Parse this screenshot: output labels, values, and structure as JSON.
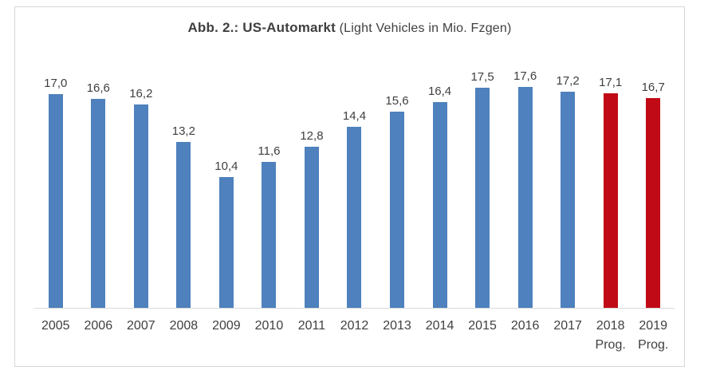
{
  "chart": {
    "title_bold": "Abb. 2.: US-Automarkt",
    "title_regular": " (Light Vehicles in Mio. Fzgen)"
  },
  "chart_data": {
    "type": "bar",
    "title": "Abb. 2.: US-Automarkt (Light Vehicles in Mio. Fzgen)",
    "xlabel": "",
    "ylabel": "Light Vehicles in Mio. Fzgen",
    "categories": [
      "2005",
      "2006",
      "2007",
      "2008",
      "2009",
      "2010",
      "2011",
      "2012",
      "2013",
      "2014",
      "2015",
      "2016",
      "2017",
      "2018",
      "2019"
    ],
    "category_sublabels": [
      "",
      "",
      "",
      "",
      "",
      "",
      "",
      "",
      "",
      "",
      "",
      "",
      "",
      "Prog.",
      "Prog."
    ],
    "values": [
      17.0,
      16.6,
      16.2,
      13.2,
      10.4,
      11.6,
      12.8,
      14.4,
      15.6,
      16.4,
      17.5,
      17.6,
      17.2,
      17.1,
      16.7
    ],
    "value_labels": [
      "17,0",
      "16,6",
      "16,2",
      "13,2",
      "10,4",
      "11,6",
      "12,8",
      "14,4",
      "15,6",
      "16,4",
      "17,5",
      "17,6",
      "17,2",
      "17,1",
      "16,7"
    ],
    "is_prognosis": [
      false,
      false,
      false,
      false,
      false,
      false,
      false,
      false,
      false,
      false,
      false,
      false,
      false,
      true,
      true
    ],
    "ylim": [
      0,
      19
    ],
    "grid": false,
    "legend": "none",
    "colors": {
      "bar_actual": "#4e81bd",
      "bar_prognosis": "#c00a15",
      "axis_line": "#d9d9d9",
      "label_text": "#404040",
      "title_text": "#3f3f3f",
      "frame_border": "#d6d6d6"
    }
  }
}
